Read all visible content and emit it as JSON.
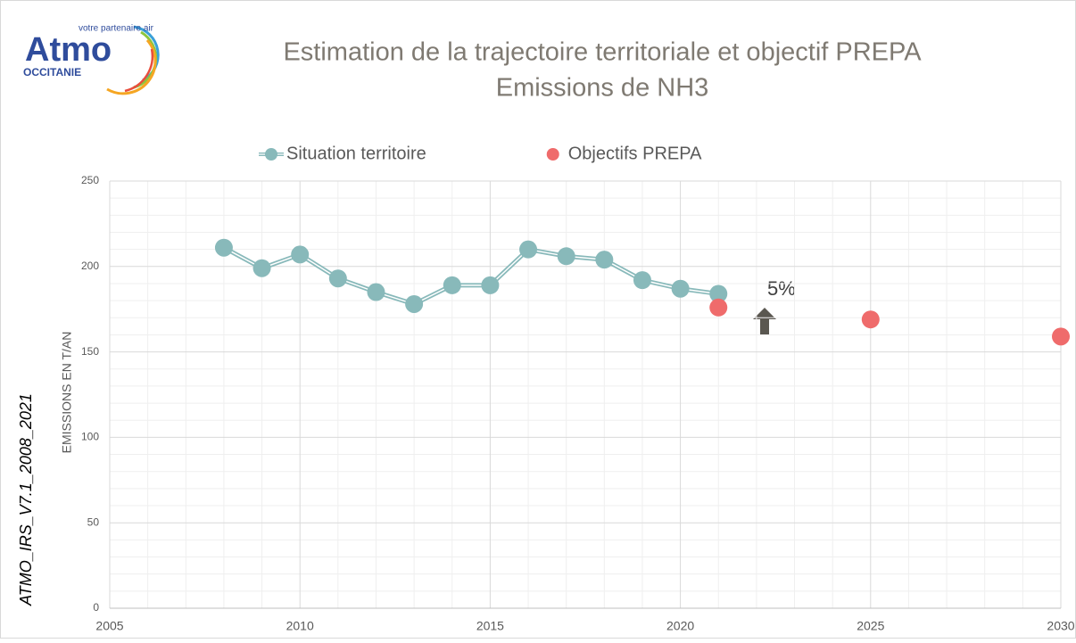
{
  "logo": {
    "name": "Atmo",
    "tagline": "votre partenaire air",
    "region": "OCCITANIE"
  },
  "side_note": "ATMO_IRS_V7.1_2008_2021",
  "chart_data": {
    "type": "line",
    "title": "Estimation de la trajectoire territoriale et objectif PREPA",
    "subtitle": "Emissions de NH3",
    "y_label": "EMISSIONS  EN T/AN",
    "annotation": "5%",
    "series": [
      {
        "name": "Situation territoire",
        "color": "#88b9ba",
        "style": "line-marker",
        "x": [
          2008,
          2009,
          2010,
          2011,
          2012,
          2013,
          2014,
          2015,
          2016,
          2017,
          2018,
          2019,
          2020,
          2021
        ],
        "values": [
          211,
          199,
          207,
          193,
          185,
          178,
          189,
          189,
          210,
          206,
          204,
          192,
          187,
          184
        ]
      },
      {
        "name": "Objectifs PREPA",
        "color": "#ef6b6b",
        "style": "marker",
        "x": [
          2021,
          2025,
          2030
        ],
        "values": [
          176,
          169,
          159
        ]
      }
    ],
    "xlim": [
      2005,
      2030
    ],
    "xticks": [
      2005,
      2010,
      2015,
      2020,
      2025,
      2030
    ],
    "ylim": [
      0,
      250
    ],
    "yticks": [
      0,
      50,
      100,
      150,
      200,
      250
    ],
    "grid": true,
    "minor_grid": true,
    "legend": "top"
  }
}
